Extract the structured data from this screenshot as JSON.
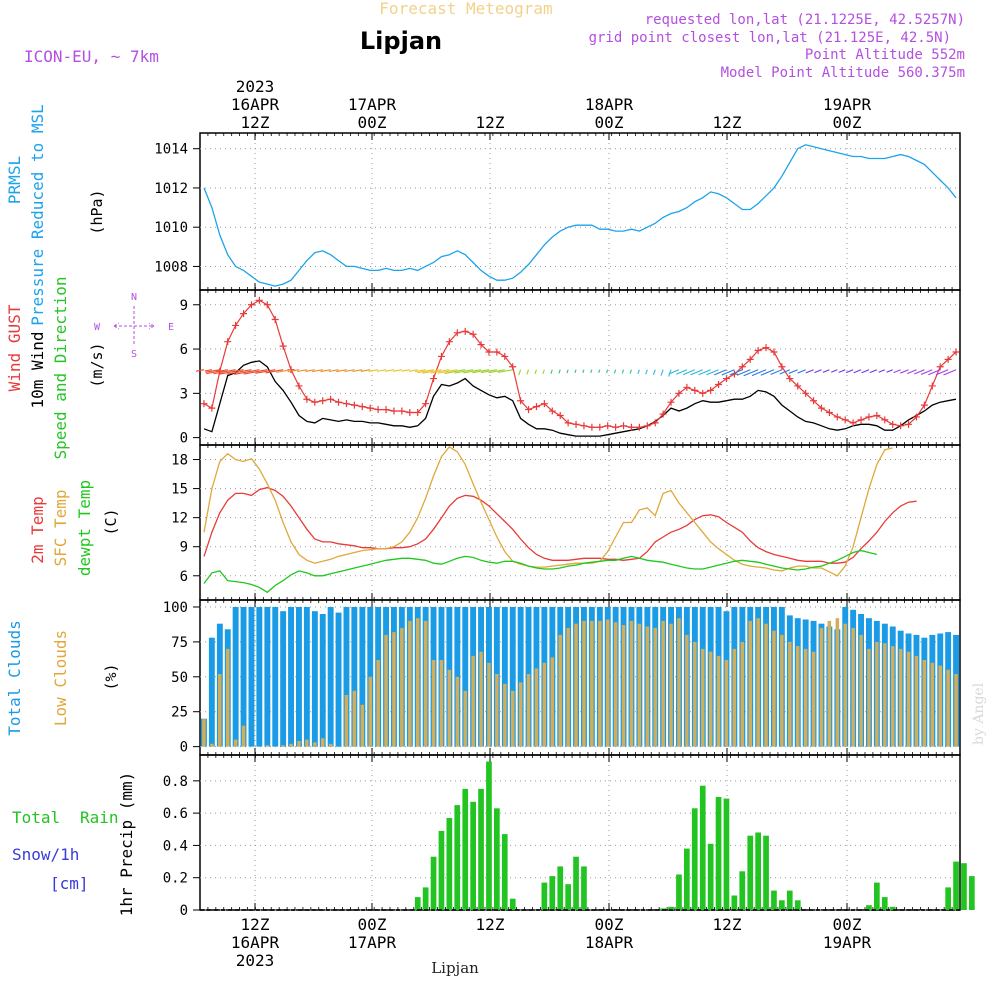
{
  "header": {
    "product": "Forecast Meteogram",
    "location": "Lipjan",
    "model": "ICON-EU, ~ 7km",
    "requested": "requested lon,lat (21.1225E, 42.5257N)",
    "gridpoint": "grid point closest lon,lat (21.125E, 42.5N)",
    "altitude": "Point Altitude 552m",
    "model_altitude": "Model Point Altitude 560.375m"
  },
  "time_axis": {
    "top": [
      {
        "year": "2023",
        "date": "16APR",
        "hour": "12Z"
      },
      {
        "year": "",
        "date": "17APR",
        "hour": "00Z"
      },
      {
        "year": "",
        "date": "",
        "hour": "12Z"
      },
      {
        "year": "",
        "date": "18APR",
        "hour": "00Z"
      },
      {
        "year": "",
        "date": "",
        "hour": "12Z"
      },
      {
        "year": "",
        "date": "19APR",
        "hour": "00Z"
      }
    ],
    "bottom": [
      {
        "hour": "12Z",
        "date": "16APR",
        "year": "2023"
      },
      {
        "hour": "00Z",
        "date": "17APR",
        "year": ""
      },
      {
        "hour": "12Z",
        "date": "",
        "year": ""
      },
      {
        "hour": "00Z",
        "date": "18APR",
        "year": ""
      },
      {
        "hour": "12Z",
        "date": "",
        "year": ""
      },
      {
        "hour": "00Z",
        "date": "19APR",
        "year": ""
      }
    ],
    "footer_label": "Lipjan",
    "watermark": "by Angel"
  },
  "colors": {
    "pressure": "#1ca3ec",
    "gust": "#e83a3a",
    "wind": "#000000",
    "sfc_temp": "#e0a83a",
    "dewpt": "#1fc81f",
    "total_clouds": "#1a9be6",
    "low_clouds": "#d2ad5a",
    "rain": "#22c422",
    "snow": "#3a3ad8",
    "purple": "#b44fe0",
    "wind_green": "#27c427"
  },
  "chart_data": [
    {
      "type": "line",
      "panel": "pressure",
      "label_lines": [
        "PRMSL",
        "Pressure Reduced to MSL"
      ],
      "unit": "(hPa)",
      "ylim": [
        1006.8,
        1014.8
      ],
      "yticks": [
        1008,
        1010,
        1012,
        1014
      ],
      "series": [
        {
          "values": [
            1012.0,
            1011.0,
            1009.6,
            1008.6,
            1008.0,
            1007.8,
            1007.5,
            1007.2,
            1007.1,
            1007.0,
            1007.1,
            1007.3,
            1007.8,
            1008.3,
            1008.7,
            1008.8,
            1008.6,
            1008.3,
            1008.0,
            1008.0,
            1007.9,
            1007.8,
            1007.8,
            1007.9,
            1007.8,
            1007.8,
            1007.9,
            1007.8,
            1008.0,
            1008.2,
            1008.5,
            1008.6,
            1008.8,
            1008.6,
            1008.2,
            1007.8,
            1007.5,
            1007.3,
            1007.3,
            1007.4,
            1007.7,
            1008.1,
            1008.6,
            1009.1,
            1009.5,
            1009.8,
            1010.0,
            1010.1,
            1010.1,
            1010.1,
            1009.9,
            1009.9,
            1009.8,
            1009.8,
            1009.9,
            1009.8,
            1010.0,
            1010.2,
            1010.5,
            1010.7,
            1010.8,
            1011.0,
            1011.3,
            1011.5,
            1011.8,
            1011.7,
            1011.5,
            1011.2,
            1010.9,
            1010.9,
            1011.2,
            1011.6,
            1012.0,
            1012.6,
            1013.3,
            1014.0,
            1014.2,
            1014.1,
            1014.0,
            1013.9,
            1013.8,
            1013.7,
            1013.6,
            1013.6,
            1013.5,
            1013.5,
            1013.5,
            1013.6,
            1013.7,
            1013.6,
            1013.4,
            1013.2,
            1012.8,
            1012.4,
            1012.0,
            1011.5
          ]
        }
      ]
    },
    {
      "type": "line",
      "panel": "wind",
      "label_lines": [
        "Wind GUST",
        "10m Wind",
        "Speed and Direction"
      ],
      "unit": "(m/s)",
      "compass": {
        "n": "N",
        "s": "S",
        "w": "W",
        "e": "E"
      },
      "ylim": [
        -0.5,
        10
      ],
      "yticks": [
        0,
        3,
        6,
        9
      ],
      "series": [
        {
          "name": "Wind GUST",
          "values": [
            2.3,
            2.0,
            4.5,
            6.5,
            7.6,
            8.4,
            9.0,
            9.3,
            9.0,
            8.0,
            6.2,
            4.6,
            3.5,
            2.6,
            2.4,
            2.5,
            2.6,
            2.4,
            2.3,
            2.2,
            2.1,
            2.0,
            1.9,
            1.9,
            1.8,
            1.8,
            1.7,
            1.7,
            2.3,
            4.0,
            5.5,
            6.5,
            7.1,
            7.2,
            7.0,
            6.3,
            5.8,
            5.8,
            5.5,
            4.8,
            2.5,
            1.9,
            2.1,
            2.3,
            1.8,
            1.5,
            1.0,
            0.9,
            0.8,
            0.7,
            0.7,
            0.8,
            0.7,
            0.8,
            0.7,
            0.7,
            0.8,
            1.0,
            1.6,
            2.4,
            3.0,
            3.4,
            3.2,
            3.0,
            3.2,
            3.6,
            4.0,
            4.3,
            4.8,
            5.3,
            5.9,
            6.1,
            5.8,
            4.8,
            4.0,
            3.5,
            3.0,
            2.5,
            2.0,
            1.7,
            1.4,
            1.2,
            1.0,
            1.2,
            1.4,
            1.5,
            1.2,
            0.9,
            0.8,
            0.9,
            1.4,
            2.2,
            3.5,
            4.8,
            5.3,
            5.8
          ]
        },
        {
          "name": "10m Wind",
          "values": [
            0.6,
            0.4,
            2.3,
            4.2,
            4.4,
            4.9,
            5.1,
            5.2,
            4.8,
            3.8,
            3.2,
            2.4,
            1.5,
            1.1,
            1.0,
            1.3,
            1.2,
            1.1,
            1.2,
            1.1,
            1.1,
            1.0,
            1.0,
            0.9,
            0.8,
            0.8,
            0.7,
            0.8,
            1.3,
            2.8,
            3.6,
            3.5,
            3.7,
            4.0,
            3.5,
            3.2,
            2.9,
            2.7,
            2.8,
            2.5,
            1.3,
            0.9,
            0.6,
            0.6,
            0.5,
            0.3,
            0.2,
            0.1,
            0.1,
            0.1,
            0.1,
            0.2,
            0.3,
            0.4,
            0.5,
            0.6,
            0.8,
            1.1,
            1.5,
            2.0,
            1.8,
            2.0,
            2.3,
            2.5,
            2.4,
            2.4,
            2.5,
            2.6,
            2.6,
            2.8,
            3.2,
            3.1,
            2.8,
            2.2,
            1.8,
            1.4,
            1.1,
            1.0,
            0.8,
            0.6,
            0.5,
            0.6,
            0.8,
            0.9,
            0.9,
            0.8,
            0.5,
            0.5,
            0.8,
            1.2,
            1.5,
            1.8,
            2.2,
            2.4,
            2.5,
            2.6
          ]
        }
      ]
    },
    {
      "type": "line",
      "panel": "temperature",
      "label_lines": [
        "2m Temp",
        "SFC Temp",
        "dewpt Temp"
      ],
      "unit": "(C)",
      "ylim": [
        3.5,
        19.5
      ],
      "yticks": [
        6,
        9,
        12,
        15,
        18
      ],
      "series": [
        {
          "name": "2m Temp",
          "values": [
            8.0,
            10.5,
            12.5,
            13.8,
            14.5,
            14.5,
            14.3,
            14.9,
            15.1,
            14.8,
            14.2,
            13.2,
            12.0,
            10.8,
            9.8,
            9.5,
            9.5,
            9.3,
            9.2,
            9.1,
            8.9,
            8.9,
            8.8,
            8.8,
            8.9,
            8.9,
            9.0,
            9.3,
            9.8,
            10.8,
            12.0,
            13.2,
            14.0,
            14.3,
            14.2,
            13.8,
            13.2,
            12.4,
            11.6,
            10.8,
            9.8,
            8.9,
            8.2,
            7.8,
            7.6,
            7.6,
            7.6,
            7.7,
            7.8,
            7.8,
            7.8,
            7.7,
            7.7,
            7.6,
            7.7,
            7.8,
            8.5,
            9.5,
            10.0,
            10.5,
            10.8,
            11.2,
            11.8,
            12.2,
            12.3,
            12.1,
            11.5,
            11.0,
            10.5,
            9.6,
            8.9,
            8.5,
            8.2,
            8.0,
            7.8,
            7.6,
            7.5,
            7.5,
            7.5,
            7.3,
            7.3,
            7.4,
            7.9,
            8.8,
            9.6,
            10.5,
            11.6,
            12.5,
            13.2,
            13.6,
            13.7
          ]
        },
        {
          "name": "SFC Temp",
          "values": [
            10.5,
            15.0,
            17.8,
            18.6,
            18.0,
            17.8,
            18.1,
            17.0,
            15.5,
            13.8,
            11.5,
            9.5,
            8.2,
            7.6,
            7.3,
            7.5,
            7.7,
            8.0,
            8.2,
            8.4,
            8.6,
            8.7,
            8.8,
            8.8,
            9.0,
            9.5,
            10.5,
            12.0,
            14.0,
            16.3,
            18.3,
            19.3,
            18.8,
            17.5,
            15.5,
            13.6,
            11.8,
            10.0,
            8.5,
            7.5,
            7.2,
            7.0,
            6.9,
            6.9,
            7.0,
            7.1,
            7.2,
            7.3,
            7.3,
            7.3,
            7.5,
            8.5,
            10.0,
            11.5,
            11.5,
            12.8,
            13.0,
            12.2,
            14.5,
            14.8,
            13.5,
            12.5,
            11.5,
            10.5,
            9.5,
            8.8,
            8.2,
            7.6,
            7.2,
            7.0,
            6.9,
            6.8,
            6.6,
            6.5,
            6.8,
            7.0,
            7.0,
            6.8,
            6.8,
            6.4,
            6.0,
            7.0,
            9.0,
            12.0,
            15.0,
            17.5,
            19.0,
            19.2
          ]
        },
        {
          "name": "dewpt Temp",
          "values": [
            5.2,
            6.3,
            6.5,
            5.5,
            5.4,
            5.3,
            5.1,
            4.8,
            4.3,
            5.0,
            5.5,
            6.1,
            6.5,
            6.3,
            6.0,
            6.0,
            6.2,
            6.4,
            6.6,
            6.8,
            7.0,
            7.2,
            7.4,
            7.6,
            7.7,
            7.8,
            7.8,
            7.7,
            7.6,
            7.3,
            7.2,
            7.5,
            7.8,
            8.0,
            7.9,
            7.6,
            7.4,
            7.3,
            7.5,
            7.5,
            7.3,
            7.0,
            6.8,
            6.7,
            6.7,
            6.8,
            7.0,
            7.1,
            7.3,
            7.4,
            7.5,
            7.6,
            7.6,
            7.8,
            8.0,
            7.8,
            7.6,
            7.5,
            7.4,
            7.2,
            7.0,
            6.8,
            6.7,
            6.7,
            6.9,
            7.1,
            7.3,
            7.5,
            7.6,
            7.5,
            7.4,
            7.2,
            7.0,
            6.8,
            6.7,
            6.6,
            6.7,
            6.9,
            7.0,
            7.3,
            7.6,
            8.0,
            8.4,
            8.6,
            8.4,
            8.2
          ]
        }
      ]
    },
    {
      "type": "bar",
      "panel": "clouds",
      "label_lines": [
        "Total Clouds",
        "Low Clouds"
      ],
      "unit": "(%)",
      "ylim": [
        -6,
        105
      ],
      "yticks": [
        0,
        25,
        50,
        75,
        100
      ],
      "series": [
        {
          "name": "Total Clouds",
          "values": [
            20,
            78,
            88,
            84,
            100,
            100,
            100,
            100,
            100,
            100,
            97,
            100,
            100,
            100,
            97,
            95,
            100,
            96,
            100,
            100,
            100,
            100,
            100,
            100,
            100,
            100,
            100,
            100,
            100,
            100,
            100,
            100,
            100,
            100,
            100,
            100,
            100,
            100,
            100,
            100,
            100,
            100,
            100,
            100,
            100,
            100,
            100,
            100,
            100,
            100,
            100,
            100,
            100,
            100,
            100,
            100,
            100,
            100,
            100,
            100,
            100,
            100,
            100,
            100,
            100,
            100,
            97,
            100,
            100,
            100,
            100,
            100,
            100,
            100,
            94,
            92,
            91,
            90,
            88,
            86,
            84,
            100,
            98,
            95,
            92,
            90,
            88,
            86,
            83,
            81,
            80,
            78,
            80,
            81,
            82,
            80
          ]
        },
        {
          "name": "Low Clouds",
          "values": [
            20,
            2,
            52,
            70,
            5,
            15,
            0,
            0,
            1,
            0,
            1,
            2,
            4,
            5,
            3,
            6,
            2,
            0,
            37,
            40,
            30,
            50,
            62,
            80,
            82,
            85,
            90,
            92,
            90,
            62,
            62,
            55,
            50,
            40,
            65,
            68,
            60,
            52,
            45,
            40,
            46,
            52,
            56,
            60,
            64,
            80,
            85,
            88,
            90,
            90,
            90,
            91,
            89,
            87,
            90,
            88,
            86,
            85,
            90,
            88,
            92,
            80,
            75,
            70,
            68,
            65,
            62,
            70,
            75,
            90,
            92,
            88,
            83,
            80,
            75,
            72,
            70,
            68,
            85,
            90,
            92,
            88,
            85,
            80,
            70,
            75,
            74,
            72,
            70,
            68,
            65,
            62,
            60,
            58,
            55,
            52
          ]
        }
      ]
    },
    {
      "type": "bar",
      "panel": "precip",
      "label_lines": [
        "Total",
        "Rain",
        "Snow/1h",
        "[cm]",
        "1hr Precip (mm)"
      ],
      "ylim": [
        0,
        0.96
      ],
      "yticks": [
        0,
        0.2,
        0.4,
        0.6,
        0.8
      ],
      "ytick_labels": [
        "0",
        "0.2",
        "0.4",
        "0.6",
        "0.8"
      ],
      "series": [
        {
          "name": "Total Rain",
          "values": [
            0,
            0,
            0,
            0,
            0,
            0,
            0,
            0,
            0,
            0,
            0,
            0,
            0,
            0,
            0,
            0,
            0,
            0,
            0,
            0,
            0,
            0,
            0,
            0,
            0,
            0,
            0,
            0.08,
            0.14,
            0.33,
            0.49,
            0.57,
            0.65,
            0.75,
            0.67,
            0.75,
            0.92,
            0.63,
            0.47,
            0.07,
            0,
            0,
            0,
            0.17,
            0.21,
            0.27,
            0.16,
            0.33,
            0.27,
            0,
            0,
            0,
            0,
            0,
            0,
            0,
            0,
            0,
            0.01,
            0.02,
            0.22,
            0.38,
            0.63,
            0.77,
            0.41,
            0.7,
            0.69,
            0.09,
            0.24,
            0.46,
            0.48,
            0.46,
            0.12,
            0.06,
            0.12,
            0.06,
            0,
            0,
            0,
            0,
            0,
            0,
            0,
            0,
            0.03,
            0.17,
            0.08,
            0.02,
            0,
            0,
            0,
            0,
            0,
            0,
            0.14,
            0.3,
            0.29,
            0.21
          ]
        }
      ]
    }
  ]
}
